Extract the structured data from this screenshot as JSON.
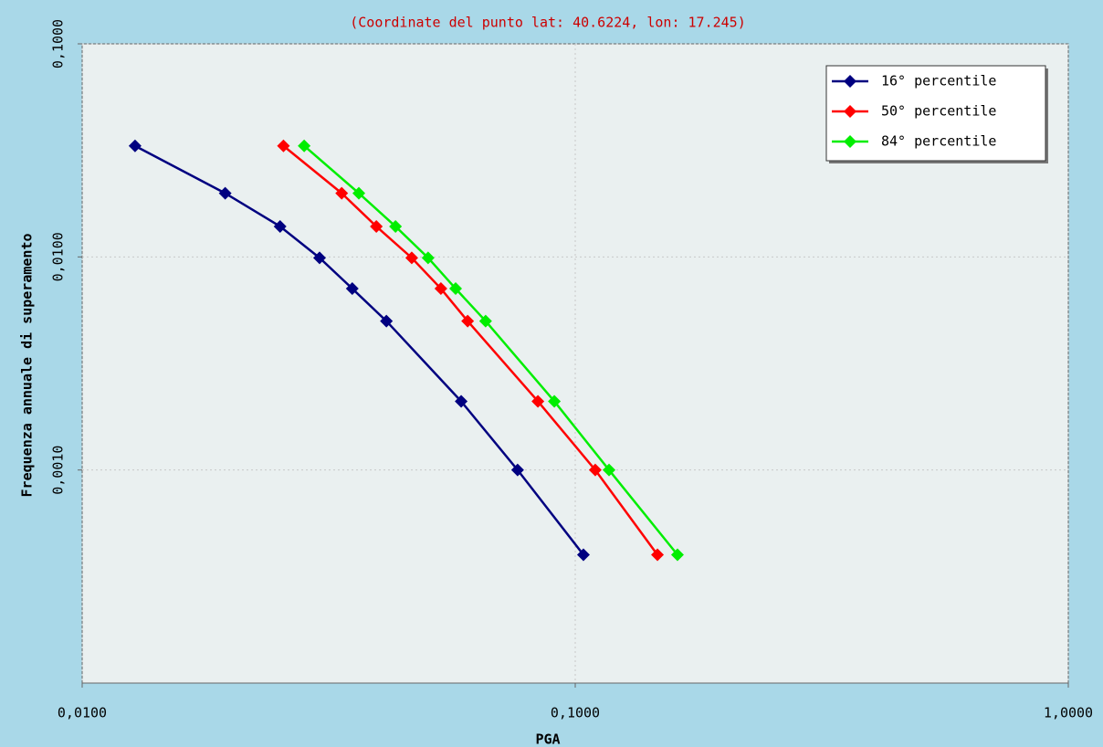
{
  "chart_data": {
    "type": "line",
    "subtitle": "(Coordinate del punto lat: 40.6224, lon: 17.245)",
    "x_label": "PGA",
    "y_label": "Frequenza annuale di superamento",
    "log_x": true,
    "log_y": true,
    "grid": true,
    "legend": "top-right",
    "xlim": [
      0.01,
      1.0
    ],
    "xticks": [
      {
        "value": 0.01,
        "label": "0,0100"
      },
      {
        "value": 0.1,
        "label": "0,1000"
      },
      {
        "value": 1.0,
        "label": "1,0000"
      }
    ],
    "ylim": [
      0.0001,
      0.1
    ],
    "yticks": [
      {
        "value": 0.1,
        "label": "0,1000"
      },
      {
        "value": 0.01,
        "label": "0,0100"
      },
      {
        "value": 0.001,
        "label": "0,0010"
      }
    ],
    "series": [
      {
        "name": "16° percentile",
        "color": "#000080",
        "x": [
          0.0128,
          0.0195,
          0.0252,
          0.0303,
          0.0353,
          0.0414,
          0.0587,
          0.0764,
          0.1039
        ],
        "values": [
          0.0332,
          0.0199,
          0.0139,
          0.0099,
          0.0071,
          0.005,
          0.0021,
          0.001,
          0.0004
        ]
      },
      {
        "name": "50° percentile",
        "color": "#ff0000",
        "x": [
          0.0256,
          0.0336,
          0.0395,
          0.0466,
          0.0534,
          0.0605,
          0.084,
          0.1098,
          0.1468
        ],
        "values": [
          0.0332,
          0.0199,
          0.0139,
          0.0099,
          0.0071,
          0.005,
          0.0021,
          0.001,
          0.0004
        ]
      },
      {
        "name": "84° percentile",
        "color": "#00ee00",
        "x": [
          0.0282,
          0.0364,
          0.0432,
          0.0503,
          0.0572,
          0.0658,
          0.0907,
          0.1171,
          0.1612
        ],
        "values": [
          0.0332,
          0.0199,
          0.0139,
          0.0099,
          0.0071,
          0.005,
          0.0021,
          0.001,
          0.0004
        ]
      }
    ]
  }
}
